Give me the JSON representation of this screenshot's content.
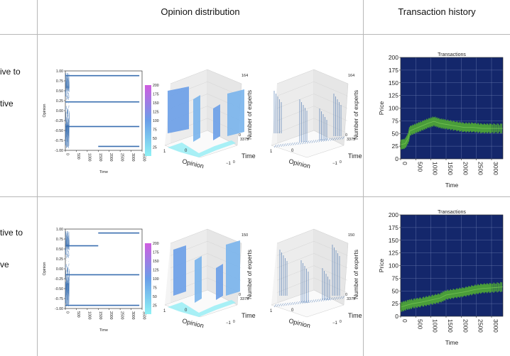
{
  "header": {
    "opinion_distribution": "Opinion distribution",
    "transaction_history": "Transaction history"
  },
  "rows": [
    {
      "label_lines": [
        "ive to",
        "tive"
      ],
      "traj": {
        "ylabel": "Opinion",
        "xlabel": "Time",
        "yticks": [
          "1.00",
          "0.75",
          "0.50",
          "0.25",
          "0.00",
          "-0.25",
          "-0.50",
          "-0.75",
          "-1.00"
        ],
        "xticks": [
          "0",
          "500",
          "1000",
          "1500",
          "2000",
          "2500",
          "3000",
          "3500"
        ],
        "clusters": [
          {
            "y": 0.88,
            "start": 0,
            "end": 3375
          },
          {
            "y": 0.22,
            "start": 0,
            "end": 3375
          },
          {
            "y": -0.4,
            "start": 0,
            "end": 3375
          },
          {
            "y": -0.9,
            "start": 1500,
            "end": 3375
          }
        ]
      },
      "colorbar": {
        "ticks": [
          "200",
          "175",
          "150",
          "125",
          "100",
          "75",
          "50",
          "25"
        ],
        "max": 200
      },
      "surf3d": {
        "z_top": "164",
        "z_zero": "0",
        "t_max": "3375",
        "x_one": "1",
        "x_mid": "0",
        "x_neg": "−1",
        "t_zero": "0",
        "opinion_label": "Opinion",
        "time_label": "Time",
        "experts_label": "Number of experts"
      },
      "transactions": {
        "title": "Transactions",
        "xlabel": "Time",
        "ylabel": "Price",
        "yticks": [
          "200",
          "175",
          "150",
          "125",
          "100",
          "75",
          "50",
          "25",
          "0"
        ],
        "xticks": [
          "0",
          "500",
          "1000",
          "1500",
          "2000",
          "2500",
          "3000"
        ],
        "ylim": [
          0,
          200
        ],
        "xlim": [
          0,
          3375
        ],
        "series": [
          [
            0,
            28
          ],
          [
            150,
            30
          ],
          [
            260,
            42
          ],
          [
            300,
            55
          ],
          [
            500,
            60
          ],
          [
            700,
            65
          ],
          [
            900,
            70
          ],
          [
            1100,
            74
          ],
          [
            1300,
            70
          ],
          [
            1500,
            68
          ],
          [
            1800,
            65
          ],
          [
            2100,
            62
          ],
          [
            2400,
            62
          ],
          [
            2700,
            60
          ],
          [
            3000,
            60
          ],
          [
            3375,
            60
          ]
        ]
      }
    },
    {
      "label_lines": [
        "tive to",
        "ve"
      ],
      "traj": {
        "ylabel": "Opinion",
        "xlabel": "Time",
        "yticks": [
          "1.00",
          "0.75",
          "0.50",
          "0.25",
          "0.00",
          "-0.25",
          "-0.50",
          "-0.75",
          "-1.00"
        ],
        "xticks": [
          "0",
          "500",
          "1000",
          "1500",
          "2000",
          "2500",
          "3000",
          "3500"
        ],
        "clusters": [
          {
            "y": 0.58,
            "start": 0,
            "end": 1500
          },
          {
            "y": 0.9,
            "start": 1500,
            "end": 3375
          },
          {
            "y": -0.15,
            "start": 0,
            "end": 3375
          },
          {
            "y": -0.92,
            "start": 0,
            "end": 3375
          }
        ]
      },
      "colorbar": {
        "ticks": [
          "200",
          "175",
          "150",
          "125",
          "100",
          "75",
          "50",
          "25"
        ],
        "max": 200
      },
      "surf3d": {
        "z_top": "150",
        "z_zero": "0",
        "t_max": "3375",
        "x_one": "1",
        "x_mid": "0",
        "x_neg": "−1",
        "t_zero": "0",
        "opinion_label": "Opinion",
        "time_label": "Time",
        "experts_label": "Number of experts"
      },
      "transactions": {
        "title": "Transactions",
        "xlabel": "Time",
        "ylabel": "Price",
        "yticks": [
          "200",
          "175",
          "150",
          "125",
          "100",
          "75",
          "50",
          "25",
          "0"
        ],
        "xticks": [
          "0",
          "500",
          "1000",
          "1500",
          "2000",
          "2500",
          "3000"
        ],
        "ylim": [
          0,
          200
        ],
        "xlim": [
          0,
          3375
        ],
        "series": [
          [
            0,
            18
          ],
          [
            200,
            22
          ],
          [
            400,
            25
          ],
          [
            700,
            28
          ],
          [
            1000,
            32
          ],
          [
            1300,
            36
          ],
          [
            1500,
            42
          ],
          [
            1800,
            45
          ],
          [
            2100,
            48
          ],
          [
            2400,
            52
          ],
          [
            2700,
            55
          ],
          [
            3000,
            56
          ],
          [
            3375,
            58
          ]
        ]
      }
    }
  ]
}
